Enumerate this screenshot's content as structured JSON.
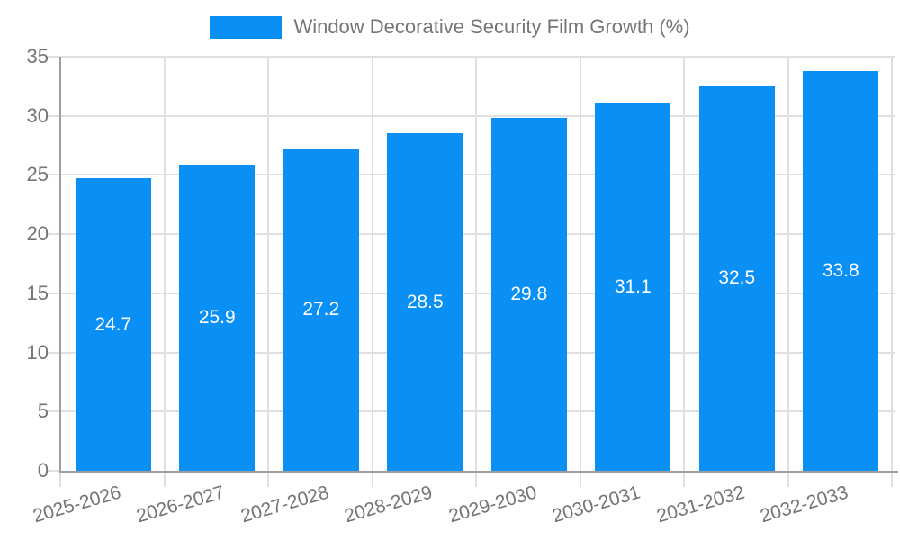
{
  "legend": {
    "items": [
      {
        "label": "Window Decorative Security Film Growth (%)",
        "color": "#0a8ff4"
      }
    ]
  },
  "chart_data": {
    "type": "bar",
    "title": "Window Decorative Security Film Growth (%)",
    "categories": [
      "2025-2026",
      "2026-2027",
      "2027-2028",
      "2028-2029",
      "2029-2030",
      "2030-2031",
      "2031-2032",
      "2032-2033"
    ],
    "series": [
      {
        "name": "Window Decorative Security Film Growth (%)",
        "values": [
          24.7,
          25.9,
          27.2,
          28.5,
          29.8,
          31.1,
          32.5,
          33.8
        ]
      }
    ],
    "xlabel": "",
    "ylabel": "",
    "ylim": [
      0,
      35
    ],
    "y_ticks": [
      0,
      5,
      10,
      15,
      20,
      25,
      30,
      35
    ],
    "grid": true,
    "legend_position": "top-center",
    "value_label_style": "inside bar, vertically centered, one decimal place, white"
  },
  "colors": {
    "bar": "#0a8ff4",
    "grid_line": "#e0e0e0",
    "axis_line": "#9e9e9e",
    "tick_text": "#757575",
    "value_label_text": "#ffffff",
    "background": "#ffffff"
  }
}
